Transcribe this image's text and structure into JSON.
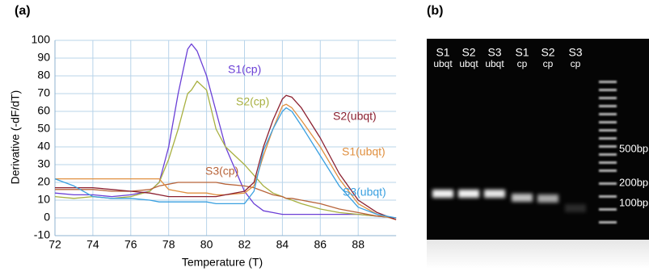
{
  "chart_data": {
    "type": "line",
    "panel_label": "(a)",
    "x_label": "Temperature  (T)",
    "y_label": "Derivative  (-dF/dT)",
    "xlim": [
      72,
      90
    ],
    "xticks": [
      72,
      74,
      76,
      78,
      80,
      82,
      84,
      86,
      88
    ],
    "ylim": [
      -10,
      100
    ],
    "yticks": [
      -10,
      0,
      10,
      20,
      30,
      40,
      50,
      60,
      70,
      80,
      90,
      100
    ],
    "grid": true,
    "x": [
      72,
      73,
      74,
      75,
      76,
      77,
      77.5,
      78,
      78.5,
      79,
      79.2,
      79.5,
      80,
      80.5,
      81,
      82,
      82.5,
      83,
      83.5,
      84,
      84.2,
      84.5,
      85,
      86,
      87,
      88,
      89,
      90
    ],
    "series": [
      {
        "name": "S1(cp)",
        "color": "#6a3fd6",
        "values": [
          14,
          13,
          13,
          12,
          13,
          15,
          20,
          40,
          70,
          95,
          98,
          94,
          80,
          60,
          40,
          15,
          8,
          4,
          3,
          2,
          2,
          2,
          2,
          2,
          2,
          2,
          1,
          0
        ]
      },
      {
        "name": "S2(cp)",
        "color": "#a8b040",
        "values": [
          12,
          11,
          12,
          11,
          12,
          15,
          20,
          33,
          50,
          70,
          72,
          77,
          72,
          50,
          40,
          30,
          24,
          18,
          14,
          12,
          11,
          10,
          8,
          5,
          3,
          2,
          1,
          0
        ]
      },
      {
        "name": "S3(cp)",
        "color": "#b8643a",
        "values": [
          16,
          16,
          16,
          15,
          15,
          16,
          18,
          19,
          20,
          20,
          20,
          20,
          20,
          20,
          19,
          18,
          17,
          15,
          13,
          12,
          11,
          11,
          10,
          8,
          5,
          3,
          1,
          0
        ]
      },
      {
        "name": "S1(ubqt)",
        "color": "#e09040",
        "values": [
          22,
          22,
          22,
          22,
          22,
          22,
          22,
          16,
          15,
          14,
          14,
          14,
          14,
          13,
          13,
          14,
          18,
          35,
          50,
          63,
          64,
          62,
          55,
          40,
          22,
          8,
          2,
          -1
        ]
      },
      {
        "name": "S2(ubqt)",
        "color": "#8b2030",
        "values": [
          17,
          17,
          17,
          16,
          15,
          14,
          13,
          12,
          12,
          12,
          12,
          12,
          12,
          12,
          13,
          15,
          20,
          40,
          55,
          67,
          69,
          68,
          62,
          45,
          25,
          10,
          3,
          -1
        ]
      },
      {
        "name": "S3(ubqt)",
        "color": "#3aa0e0",
        "values": [
          22,
          18,
          12,
          11,
          11,
          10,
          9,
          9,
          9,
          9,
          9,
          9,
          9,
          8,
          8,
          8,
          15,
          38,
          50,
          60,
          62,
          60,
          52,
          35,
          18,
          6,
          2,
          0
        ]
      }
    ]
  },
  "gel": {
    "panel_label": "(b)",
    "lanes": [
      [
        "S1",
        "ubqt"
      ],
      [
        "S2",
        "ubqt"
      ],
      [
        "S3",
        "ubqt"
      ],
      [
        "S1",
        "cp"
      ],
      [
        "S2",
        "cp"
      ],
      [
        "S3",
        "cp"
      ]
    ],
    "markers": [
      "500bp",
      "200bp",
      "100bp"
    ]
  }
}
